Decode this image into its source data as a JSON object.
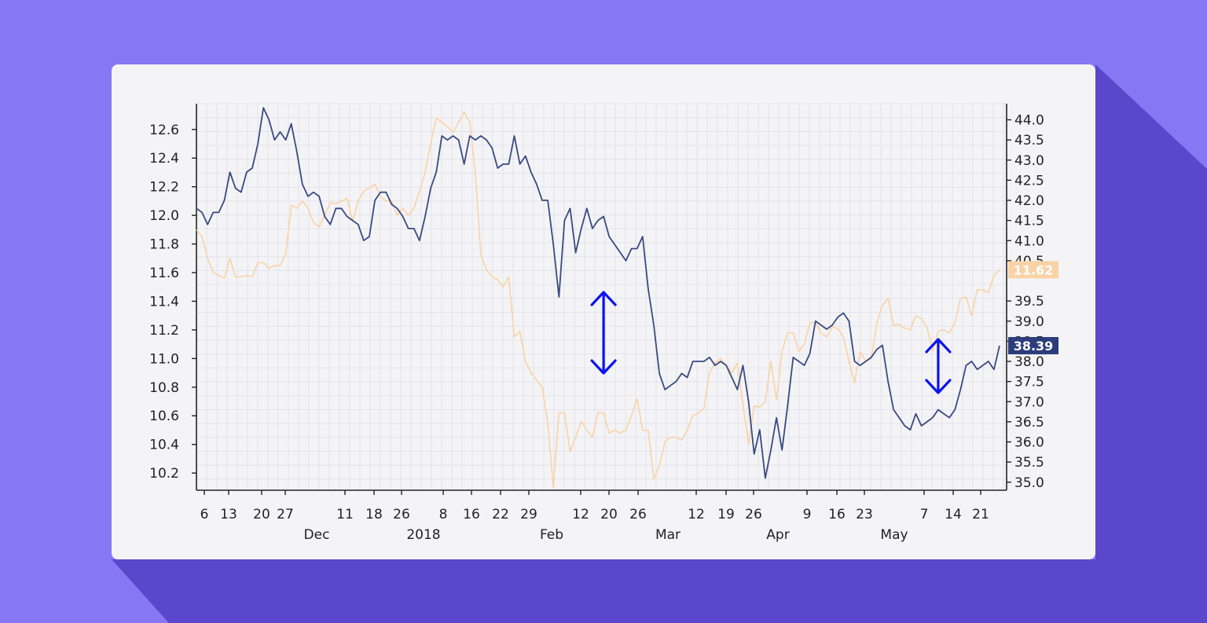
{
  "colors": {
    "background": "#8677f4",
    "shadow": "#5a47cc",
    "card": "#f4f4f7",
    "navy_series": "#3a4a80",
    "peach_series": "#f9d3a5",
    "arrow": "#0b13f0",
    "navy_badge": "#2c3d7b",
    "peach_badge": "#f9d3a5"
  },
  "chart_data": {
    "type": "line",
    "x_axis": {
      "day_ticks": [
        "6",
        "13",
        "20",
        "27",
        "11",
        "18",
        "26",
        "8",
        "16",
        "22",
        "29",
        "12",
        "20",
        "26",
        "12",
        "19",
        "26",
        "9",
        "16",
        "23",
        "7",
        "14",
        "21"
      ],
      "month_labels": [
        "Dec",
        "2018",
        "Feb",
        "Mar",
        "Apr",
        "May"
      ]
    },
    "left_axis": {
      "ticks": [
        "10.2",
        "10.4",
        "10.6",
        "10.8",
        "11.0",
        "11.2",
        "11.4",
        "11.6",
        "11.8",
        "12.0",
        "12.2",
        "12.4",
        "12.6"
      ],
      "range": [
        10.08,
        12.78
      ]
    },
    "right_axis": {
      "ticks": [
        "35.0",
        "35.5",
        "36.0",
        "36.5",
        "37.0",
        "37.5",
        "38.0",
        "38.5",
        "39.0",
        "39.5",
        "40.5",
        "41.0",
        "41.5",
        "42.0",
        "42.5",
        "43.0",
        "43.5",
        "44.0"
      ],
      "range": [
        34.8,
        44.4
      ]
    },
    "series": [
      {
        "axis": "right",
        "color": "navy",
        "last_value_label": "38.39",
        "values": [
          41.8,
          41.7,
          41.4,
          41.7,
          41.7,
          42.0,
          42.7,
          42.3,
          42.2,
          42.7,
          42.8,
          43.4,
          44.3,
          44.0,
          43.5,
          43.7,
          43.5,
          43.9,
          43.2,
          42.4,
          42.1,
          42.2,
          42.1,
          41.6,
          41.4,
          41.8,
          41.8,
          41.6,
          41.5,
          41.4,
          41.0,
          41.1,
          42.0,
          42.2,
          42.2,
          41.9,
          41.8,
          41.6,
          41.3,
          41.3,
          41.0,
          41.6,
          42.3,
          42.7,
          43.6,
          43.5,
          43.6,
          43.5,
          42.9,
          43.6,
          43.5,
          43.6,
          43.5,
          43.3,
          42.8,
          42.9,
          42.9,
          43.6,
          42.9,
          43.1,
          42.7,
          42.4,
          42.0,
          42.0,
          40.9,
          39.6,
          41.5,
          41.8,
          40.7,
          41.3,
          41.8,
          41.3,
          41.5,
          41.6,
          41.1,
          40.9,
          40.7,
          40.5,
          40.8,
          40.8,
          41.1,
          39.8,
          38.9,
          37.7,
          37.3,
          37.4,
          37.5,
          37.7,
          37.6,
          38.0,
          38.0,
          38.0,
          38.1,
          37.9,
          38.0,
          37.9,
          37.6,
          37.3,
          37.9,
          37.0,
          35.7,
          36.3,
          35.1,
          35.8,
          36.6,
          35.8,
          36.9,
          38.1,
          38.0,
          37.9,
          38.2,
          39.0,
          38.9,
          38.8,
          38.9,
          39.1,
          39.2,
          39.0,
          38.0,
          37.9,
          38.0,
          38.1,
          38.3,
          38.4,
          37.5,
          36.8,
          36.6,
          36.4,
          36.3,
          36.7,
          36.4,
          36.5,
          36.6,
          36.8,
          36.7,
          36.6,
          36.8,
          37.3,
          37.9,
          38.0,
          37.8,
          37.9,
          38.0,
          37.8,
          38.39
        ]
      },
      {
        "axis": "left",
        "color": "peach",
        "last_value_label": "11.62",
        "values": [
          11.9,
          11.85,
          11.7,
          11.6,
          11.58,
          11.56,
          11.7,
          11.57,
          11.57,
          11.58,
          11.57,
          11.67,
          11.67,
          11.63,
          11.65,
          11.65,
          11.73,
          12.07,
          12.05,
          12.1,
          12.05,
          11.95,
          11.92,
          12.0,
          12.09,
          12.08,
          12.1,
          12.12,
          11.96,
          12.1,
          12.17,
          12.19,
          12.22,
          12.13,
          12.1,
          12.1,
          12.0,
          12.05,
          12.0,
          12.05,
          12.17,
          12.3,
          12.5,
          12.68,
          12.65,
          12.62,
          12.58,
          12.65,
          12.72,
          12.65,
          12.3,
          11.72,
          11.62,
          11.57,
          11.55,
          11.5,
          11.57,
          11.15,
          11.19,
          10.98,
          10.9,
          10.85,
          10.8,
          10.55,
          10.1,
          10.62,
          10.62,
          10.35,
          10.45,
          10.56,
          10.5,
          10.45,
          10.62,
          10.62,
          10.48,
          10.5,
          10.48,
          10.5,
          10.6,
          10.72,
          10.5,
          10.5,
          10.16,
          10.25,
          10.42,
          10.45,
          10.45,
          10.43,
          10.5,
          10.6,
          10.62,
          10.65,
          10.9,
          10.97,
          11.0,
          10.95,
          10.9,
          10.97,
          10.68,
          10.4,
          10.67,
          10.66,
          10.7,
          10.98,
          10.71,
          11.05,
          11.18,
          11.18,
          11.05,
          11.1,
          11.25,
          11.25,
          11.18,
          11.15,
          11.22,
          11.21,
          11.15,
          10.98,
          10.83,
          11.05,
          10.98,
          11.0,
          11.25,
          11.37,
          11.42,
          11.23,
          11.24,
          11.21,
          11.2,
          11.3,
          11.28,
          11.22,
          11.05,
          11.19,
          11.2,
          11.18,
          11.25,
          11.42,
          11.43,
          11.3,
          11.48,
          11.48,
          11.46,
          11.58,
          11.62
        ]
      }
    ],
    "annotations": [
      {
        "type": "double-arrow",
        "x_index": 73
      },
      {
        "type": "double-arrow",
        "x_index": 133
      }
    ],
    "grid": true,
    "legend": "none"
  }
}
